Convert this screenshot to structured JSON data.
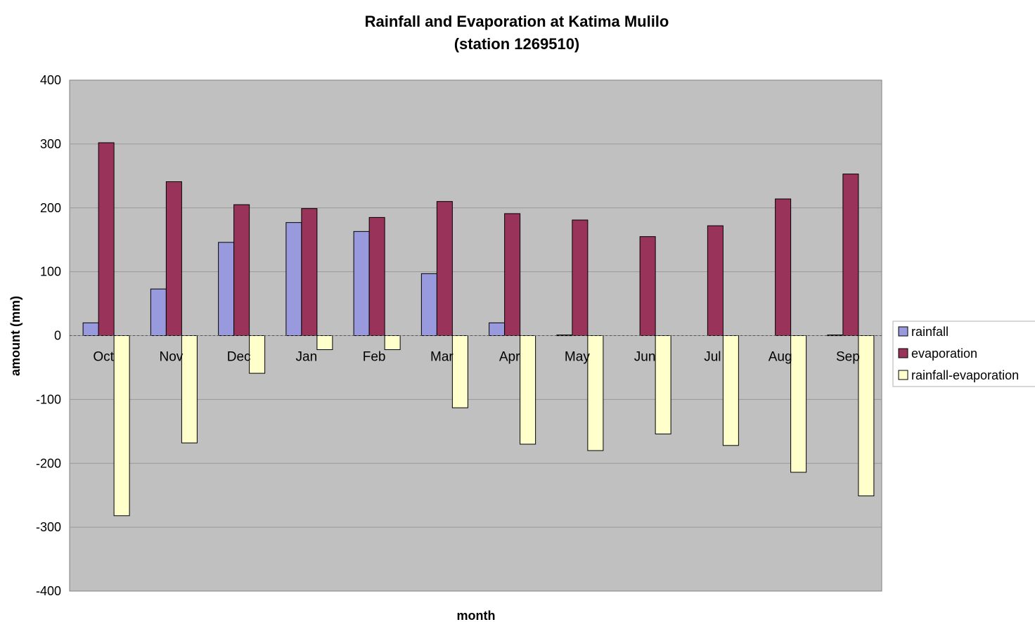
{
  "chart_data": {
    "type": "bar",
    "title": "Rainfall and Evaporation at Katima Mulilo",
    "subtitle": "(station 1269510)",
    "xlabel": "month",
    "ylabel": "amount (mm)",
    "ylim": [
      -400,
      400
    ],
    "yticks": [
      400,
      300,
      200,
      100,
      0,
      -100,
      -200,
      -300,
      -400
    ],
    "grid": true,
    "legend_position": "right",
    "categories": [
      "Oct",
      "Nov",
      "Dec",
      "Jan",
      "Feb",
      "Mar",
      "Apr",
      "May",
      "Jun",
      "Jul",
      "Aug",
      "Sep"
    ],
    "series": [
      {
        "name": "rainfall",
        "color": "#9999dd",
        "values": [
          20,
          73,
          146,
          177,
          163,
          97,
          20,
          1,
          0,
          0,
          0,
          1
        ]
      },
      {
        "name": "evaporation",
        "color": "#99335a",
        "values": [
          302,
          241,
          205,
          199,
          185,
          210,
          191,
          181,
          155,
          172,
          214,
          253
        ]
      },
      {
        "name": "rainfall-evaporation",
        "color": "#ffffcc",
        "values": [
          -282,
          -168,
          -59,
          -22,
          -22,
          -113,
          -170,
          -180,
          -154,
          -172,
          -214,
          -251
        ]
      }
    ],
    "plot_background": "#c0c0c0",
    "gridline_color": "#999999"
  }
}
